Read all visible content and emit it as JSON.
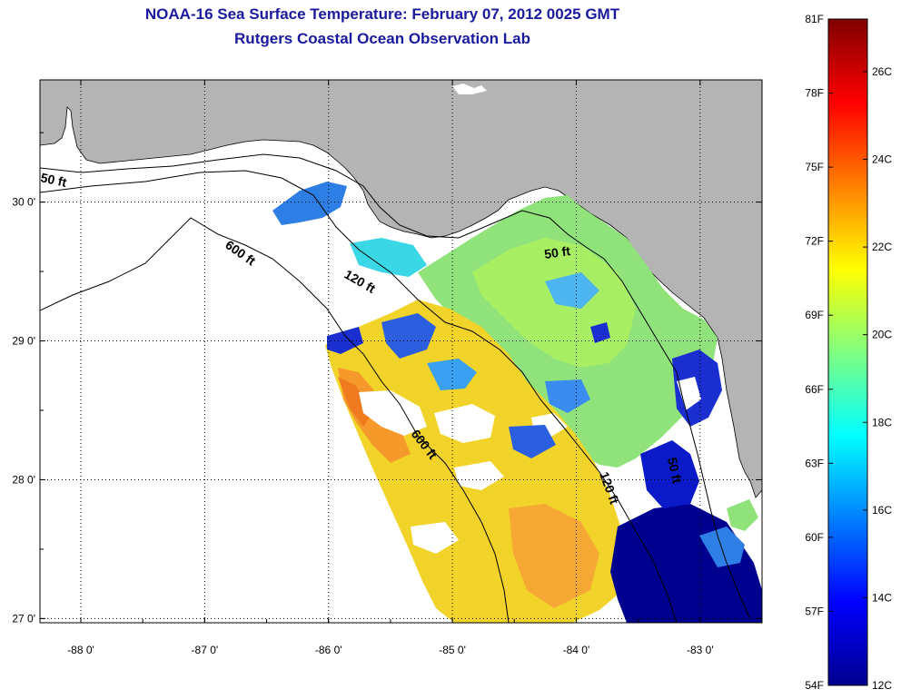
{
  "title": {
    "line1": "NOAA-16 Sea Surface Temperature:  February 07, 2012 0025 GMT",
    "line2": "Rutgers Coastal Ocean Observation Lab"
  },
  "map": {
    "lon_range": [
      -88.33,
      -82.5
    ],
    "lat_range": [
      26.97,
      30.88
    ],
    "lon_ticks": [
      {
        "value": -88,
        "label": "-88 0'"
      },
      {
        "value": -87,
        "label": "-87 0'"
      },
      {
        "value": -86,
        "label": "-86 0'"
      },
      {
        "value": -85,
        "label": "-85 0'"
      },
      {
        "value": -84,
        "label": "-84 0'"
      },
      {
        "value": -83,
        "label": "-83 0'"
      }
    ],
    "lat_ticks": [
      {
        "value": 30,
        "label": "30 0'"
      },
      {
        "value": 29,
        "label": "29 0'"
      },
      {
        "value": 28,
        "label": "28 0'"
      },
      {
        "value": 27,
        "label": "27 0'"
      }
    ],
    "grid": true,
    "land_color": "#b4b4b4",
    "ocean_no_data_color": "#ffffff",
    "contour_labels": [
      "50 ft",
      "600 ft",
      "120 ft",
      "50 ft",
      "600 ft",
      "120 ft",
      "50 ft"
    ]
  },
  "colorbar": {
    "range_f": [
      54,
      81
    ],
    "range_c": [
      12,
      27.2
    ],
    "fahrenheit_labels": [
      "81F",
      "78F",
      "75F",
      "72F",
      "69F",
      "66F",
      "63F",
      "60F",
      "57F",
      "54F"
    ],
    "celsius_labels": [
      "26C",
      "24C",
      "22C",
      "20C",
      "18C",
      "16C",
      "14C",
      "12C"
    ],
    "colormap": "jet"
  }
}
